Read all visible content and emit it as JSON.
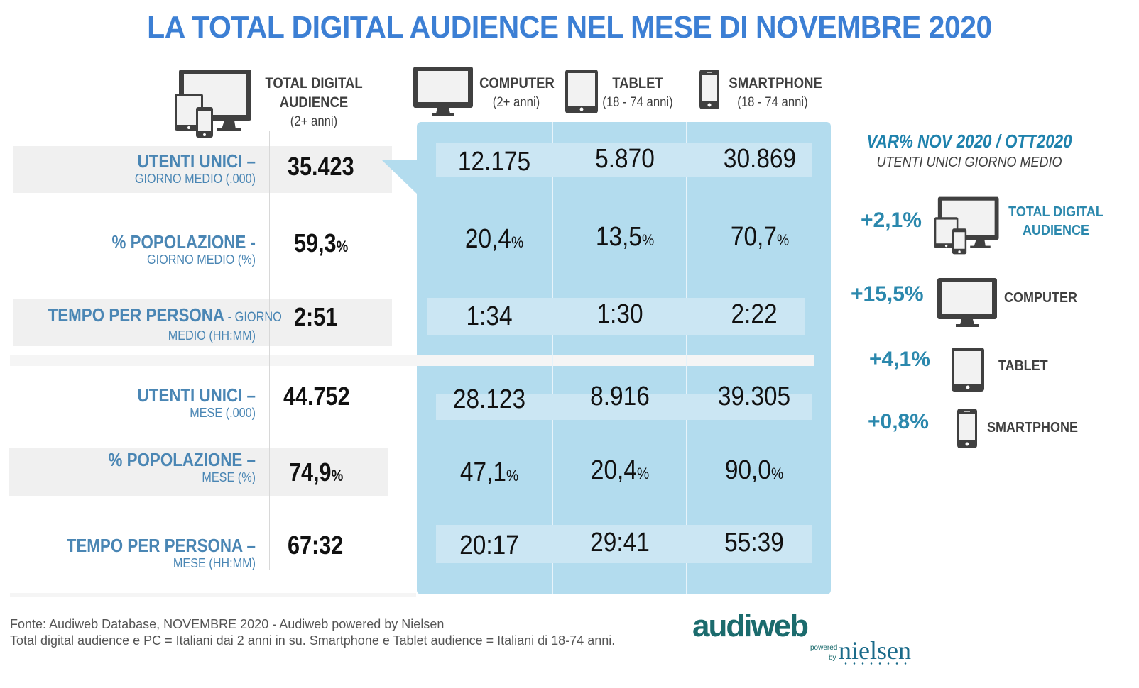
{
  "title": "LA TOTAL DIGITAL AUDIENCE NEL MESE DI NOVEMBRE 2020",
  "columns": {
    "total": {
      "name": "TOTAL DIGITAL",
      "name2": "AUDIENCE",
      "age": "(2+ anni)",
      "icon": "multi-device-icon"
    },
    "computer": {
      "name": "COMPUTER",
      "age": "(2+ anni)",
      "icon": "monitor-icon"
    },
    "tablet": {
      "name": "TABLET",
      "age": "(18 - 74 anni)",
      "icon": "tablet-icon"
    },
    "smartphone": {
      "name": "SMARTPHONE",
      "age": "(18 - 74 anni)",
      "icon": "smartphone-icon"
    }
  },
  "rows": [
    {
      "label": "UTENTI UNICI –",
      "sub": "GIORNO MEDIO (.000)",
      "total": "35.423",
      "total_unit": "",
      "computer": "12.175",
      "tablet": "5.870",
      "smartphone": "30.869",
      "unit": ""
    },
    {
      "label": "% POPOLAZIONE -",
      "sub": "GIORNO MEDIO (%)",
      "total": "59,3",
      "total_unit": "%",
      "computer": "20,4",
      "tablet": "13,5",
      "smartphone": "70,7",
      "unit": "%"
    },
    {
      "label": "TEMPO PER PERSONA",
      "label_suffix": " - GIORNO",
      "sub": "MEDIO (HH:MM)",
      "total": "2:51",
      "total_unit": "",
      "computer": "1:34",
      "tablet": "1:30",
      "smartphone": "2:22",
      "unit": ""
    },
    {
      "label": "UTENTI UNICI –",
      "sub": "MESE (.000)",
      "total": "44.752",
      "total_unit": "",
      "computer": "28.123",
      "tablet": "8.916",
      "smartphone": "39.305",
      "unit": ""
    },
    {
      "label": "% POPOLAZIONE –",
      "sub": "MESE (%)",
      "total": "74,9",
      "total_unit": "%",
      "computer": "47,1",
      "tablet": "20,4",
      "smartphone": "90,0",
      "unit": "%"
    },
    {
      "label": "TEMPO PER PERSONA –",
      "sub": "MESE (HH:MM)",
      "total": "67:32",
      "total_unit": "",
      "computer": "20:17",
      "tablet": "29:41",
      "smartphone": "55:39",
      "unit": ""
    }
  ],
  "variation": {
    "title": "VAR% NOV 2020 / OTT2020",
    "subtitle": "UTENTI UNICI GIORNO MEDIO",
    "items": [
      {
        "value": "+2,1%",
        "label": "TOTAL DIGITAL",
        "label2": "AUDIENCE",
        "icon": "multi-device-icon"
      },
      {
        "value": "+15,5%",
        "label": "COMPUTER",
        "icon": "monitor-icon"
      },
      {
        "value": "+4,1%",
        "label": "TABLET",
        "icon": "tablet-icon"
      },
      {
        "value": "+0,8%",
        "label": "SMARTPHONE",
        "icon": "smartphone-icon"
      }
    ]
  },
  "footer": {
    "line1": "Fonte: Audiweb Database, NOVEMBRE 2020 - Audiweb powered by Nielsen",
    "line2": "Total digital audience e PC = Italiani dai 2 anni in su. Smartphone e Tablet audience = Italiani di 18-74 anni."
  },
  "logo": {
    "brand": "audiweb",
    "powered": "powered",
    "by": "by",
    "partner": "nielsen"
  },
  "colors": {
    "title": "#3c7fd4",
    "label": "#4a86b4",
    "panel": "#b3dcee",
    "variation": "#2b88ad",
    "icon": "#404040"
  }
}
